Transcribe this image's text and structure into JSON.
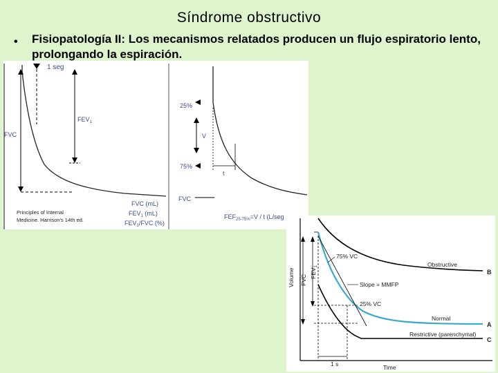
{
  "slide": {
    "title": "Síndrome obstructivo",
    "bullet": "Fisiopatología II:  Los mecanismos relatados producen un flujo espiratorio lento, prolongando la espiración."
  },
  "figure1": {
    "left_panel": {
      "label_1seg": "1 seg",
      "label_fev1": "FEV",
      "label_fev1_sub": "1",
      "label_fvc": "FVC",
      "legend_fvc": "FVC (mL)",
      "legend_fev1": "FEV",
      "legend_fev1_sub": "1",
      "legend_fev1_unit": " (mL)",
      "legend_ratio_a": "FEV",
      "legend_ratio_sub": "1",
      "legend_ratio_b": "/FVC (%)",
      "credit_line1": "Principles of Internal",
      "credit_line2": "Medicine. Harrison's 14th ed."
    },
    "right_panel": {
      "label_25": "25%",
      "label_75": "75%",
      "label_v": "V",
      "label_t": "t",
      "label_fvc": "FVC",
      "formula_a": "FEF",
      "formula_sub": "25-75%",
      "formula_b": "=V / t (L/seg"
    }
  },
  "figure2": {
    "label_75vc": "75% VC",
    "label_obstructive": "Obstructive",
    "label_slope": "Slope = MMFP",
    "label_25vc": "25% VC",
    "label_normal": "Normal",
    "label_restrictive": "Restrictive (parenchymal)",
    "label_B": "B",
    "label_A": "A",
    "label_C": "C",
    "axis_volume": "Volume",
    "axis_fvc": "FVC",
    "axis_fev1": "FEV",
    "axis_fev1_sub": "1",
    "axis_1s": "1 s",
    "axis_time": "Time",
    "colors": {
      "normal_curve": "#3aa8c8",
      "other_curves": "#000000"
    }
  }
}
